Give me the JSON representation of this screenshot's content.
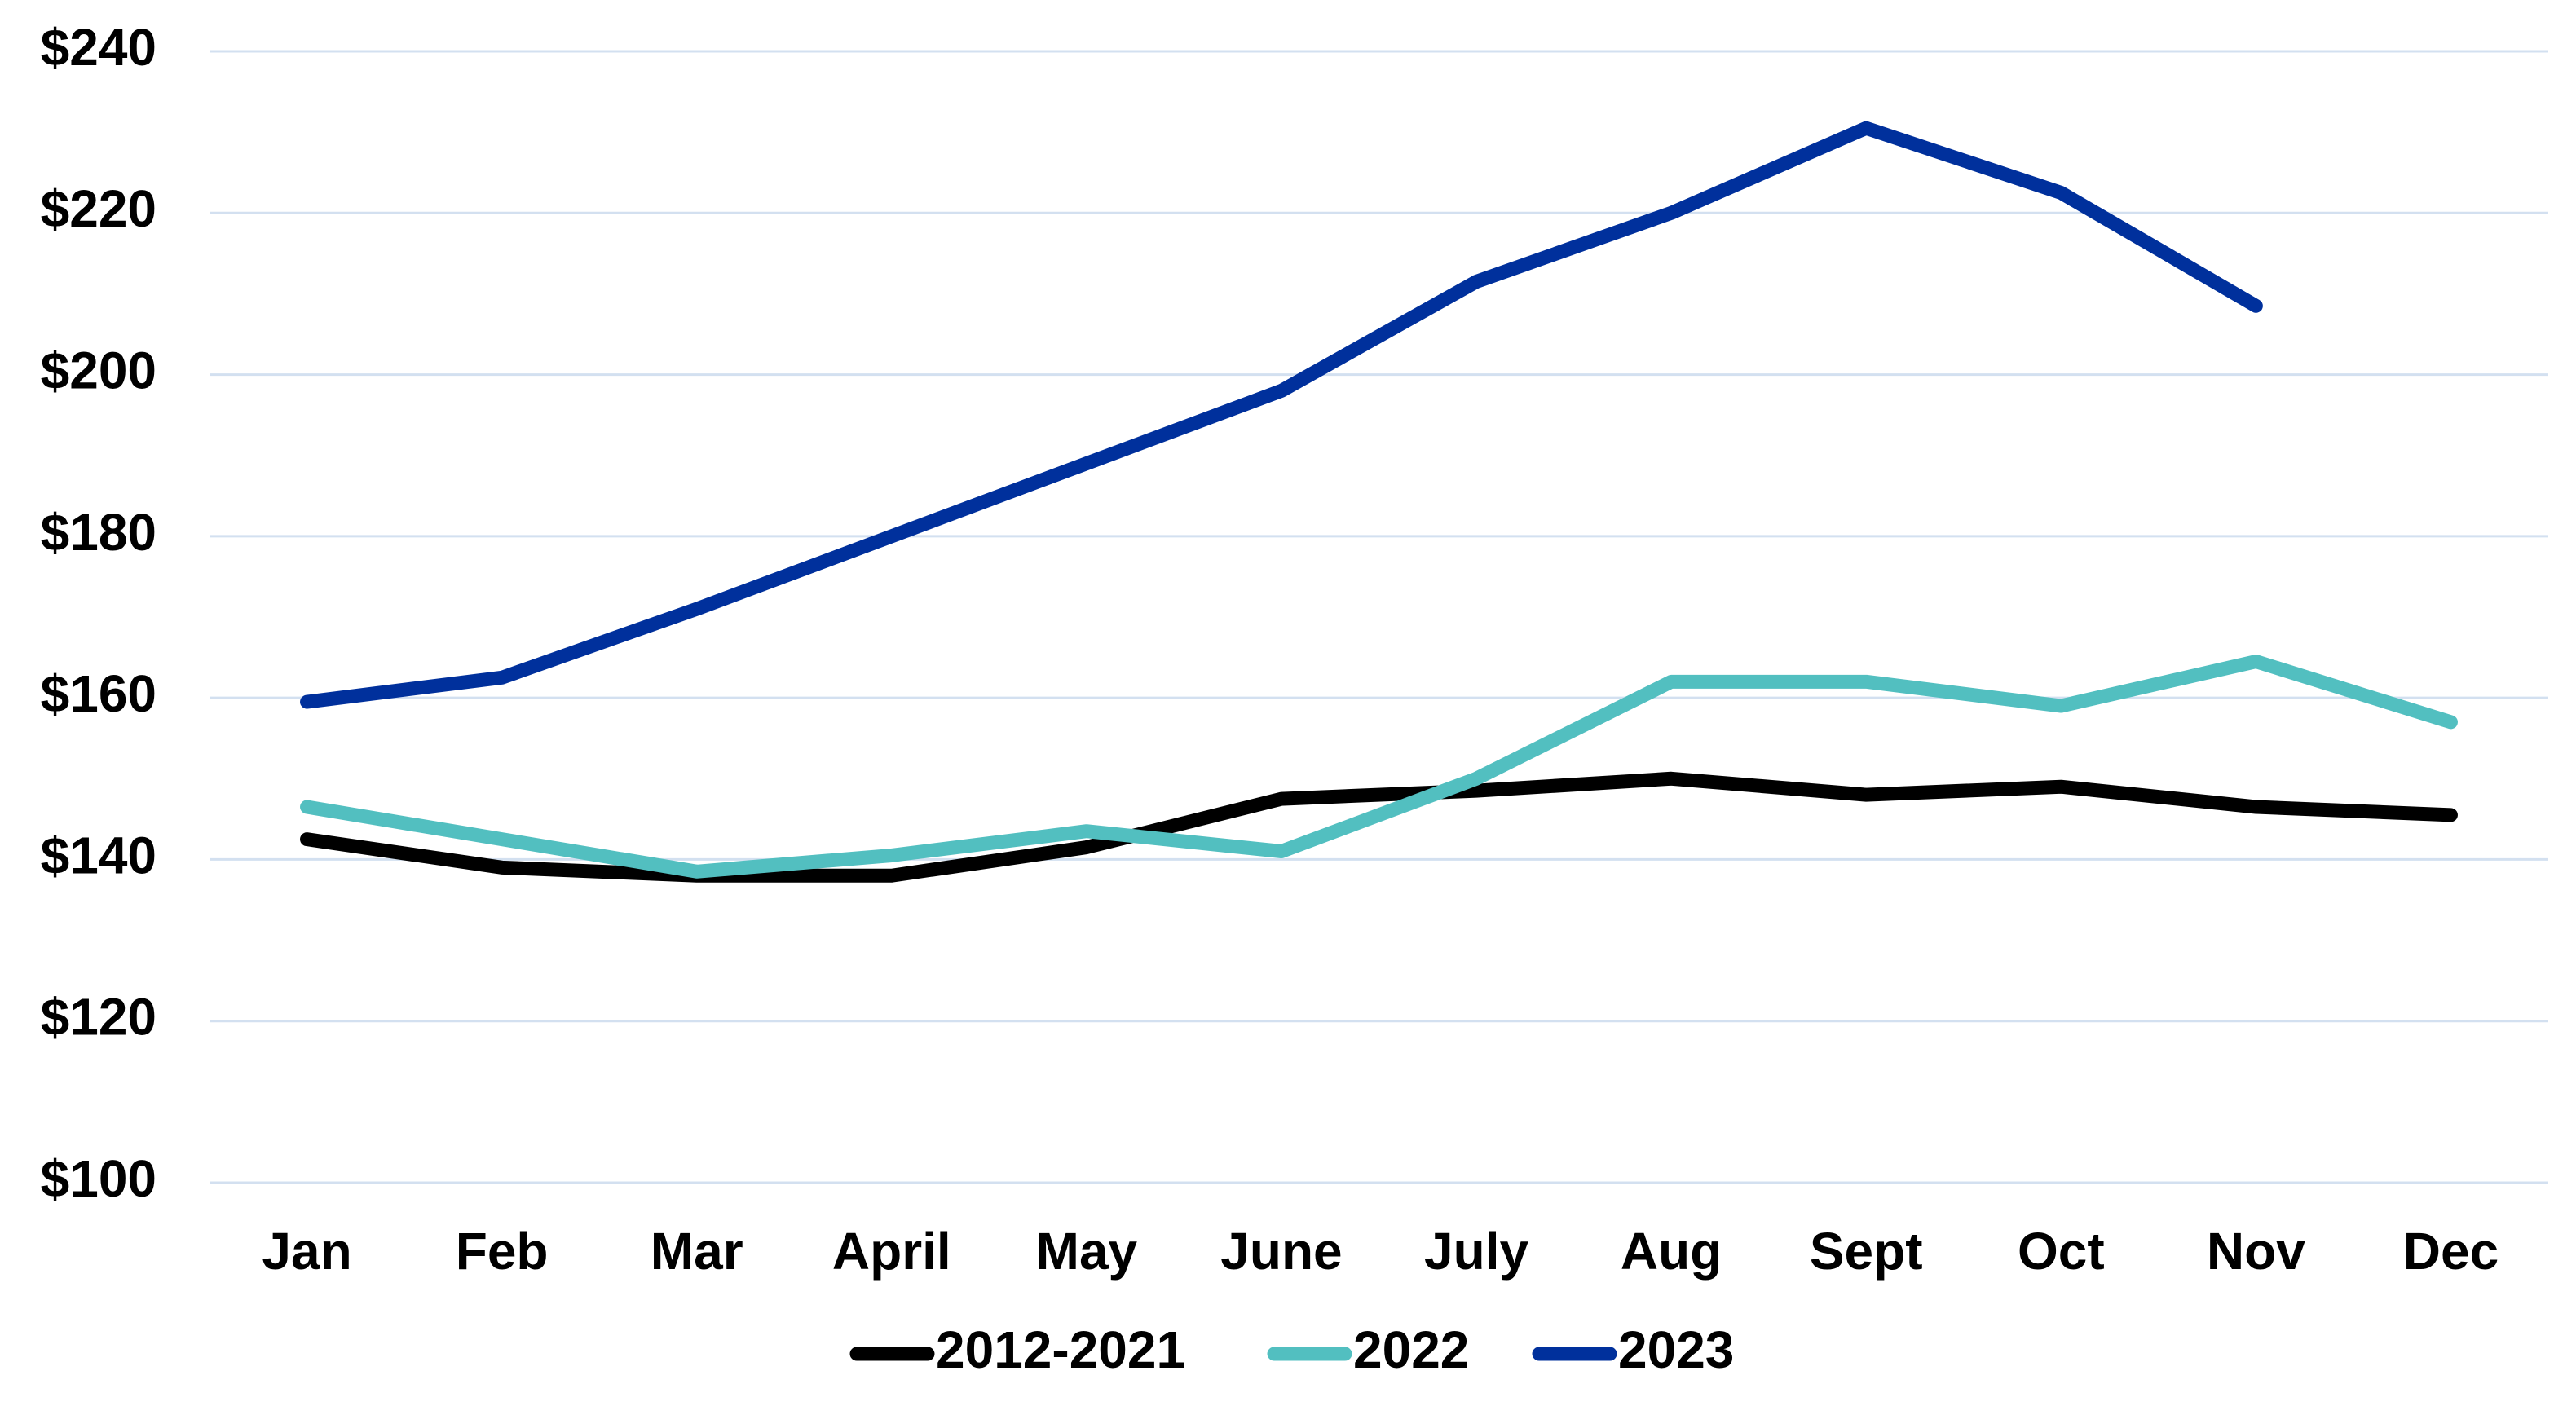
{
  "chart_data": {
    "type": "line",
    "categories": [
      "Jan",
      "Feb",
      "Mar",
      "April",
      "May",
      "June",
      "July",
      "Aug",
      "Sept",
      "Oct",
      "Nov",
      "Dec"
    ],
    "series": [
      {
        "name": "2012-2021",
        "color": "#000000",
        "values": [
          142.5,
          139,
          138,
          138,
          141.5,
          147.5,
          148.5,
          150,
          148,
          149,
          146.5,
          145.5
        ]
      },
      {
        "name": "2022",
        "color": "#52bfc0",
        "values": [
          146.5,
          142.5,
          138.5,
          140.5,
          143.5,
          141,
          150,
          162,
          162,
          159,
          164.5,
          157
        ]
      },
      {
        "name": "2023",
        "color": "#00309c",
        "values": [
          159.5,
          162.5,
          171,
          180,
          189,
          198,
          211.5,
          220,
          230.5,
          222.5,
          208.5,
          null
        ]
      }
    ],
    "ylim": [
      100,
      240
    ],
    "yticks": [
      {
        "value": 100,
        "label": "$100"
      },
      {
        "value": 120,
        "label": "$120"
      },
      {
        "value": 140,
        "label": "$140"
      },
      {
        "value": 160,
        "label": "$160"
      },
      {
        "value": 180,
        "label": "$180"
      },
      {
        "value": 200,
        "label": "$200"
      },
      {
        "value": 220,
        "label": "$220"
      },
      {
        "value": 240,
        "label": "$240"
      }
    ],
    "grid": true,
    "legend": "bottom"
  }
}
